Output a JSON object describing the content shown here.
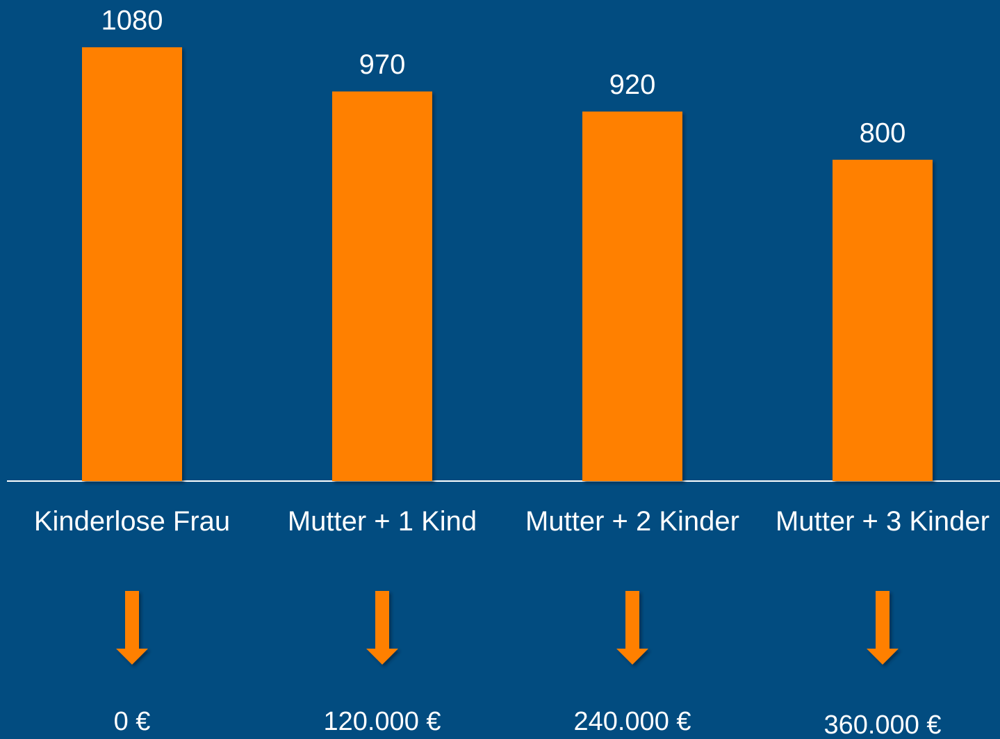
{
  "chart_data": {
    "type": "bar",
    "categories": [
      "Kinderlose Frau",
      "Mutter + 1 Kind",
      "Mutter + 2 Kinder",
      "Mutter + 3 Kinder"
    ],
    "values": [
      1080,
      970,
      920,
      800
    ],
    "color": "#ff8000",
    "annotations": [
      "0 €",
      "120.000 €",
      "240.000 €",
      "360.000 €"
    ]
  }
}
